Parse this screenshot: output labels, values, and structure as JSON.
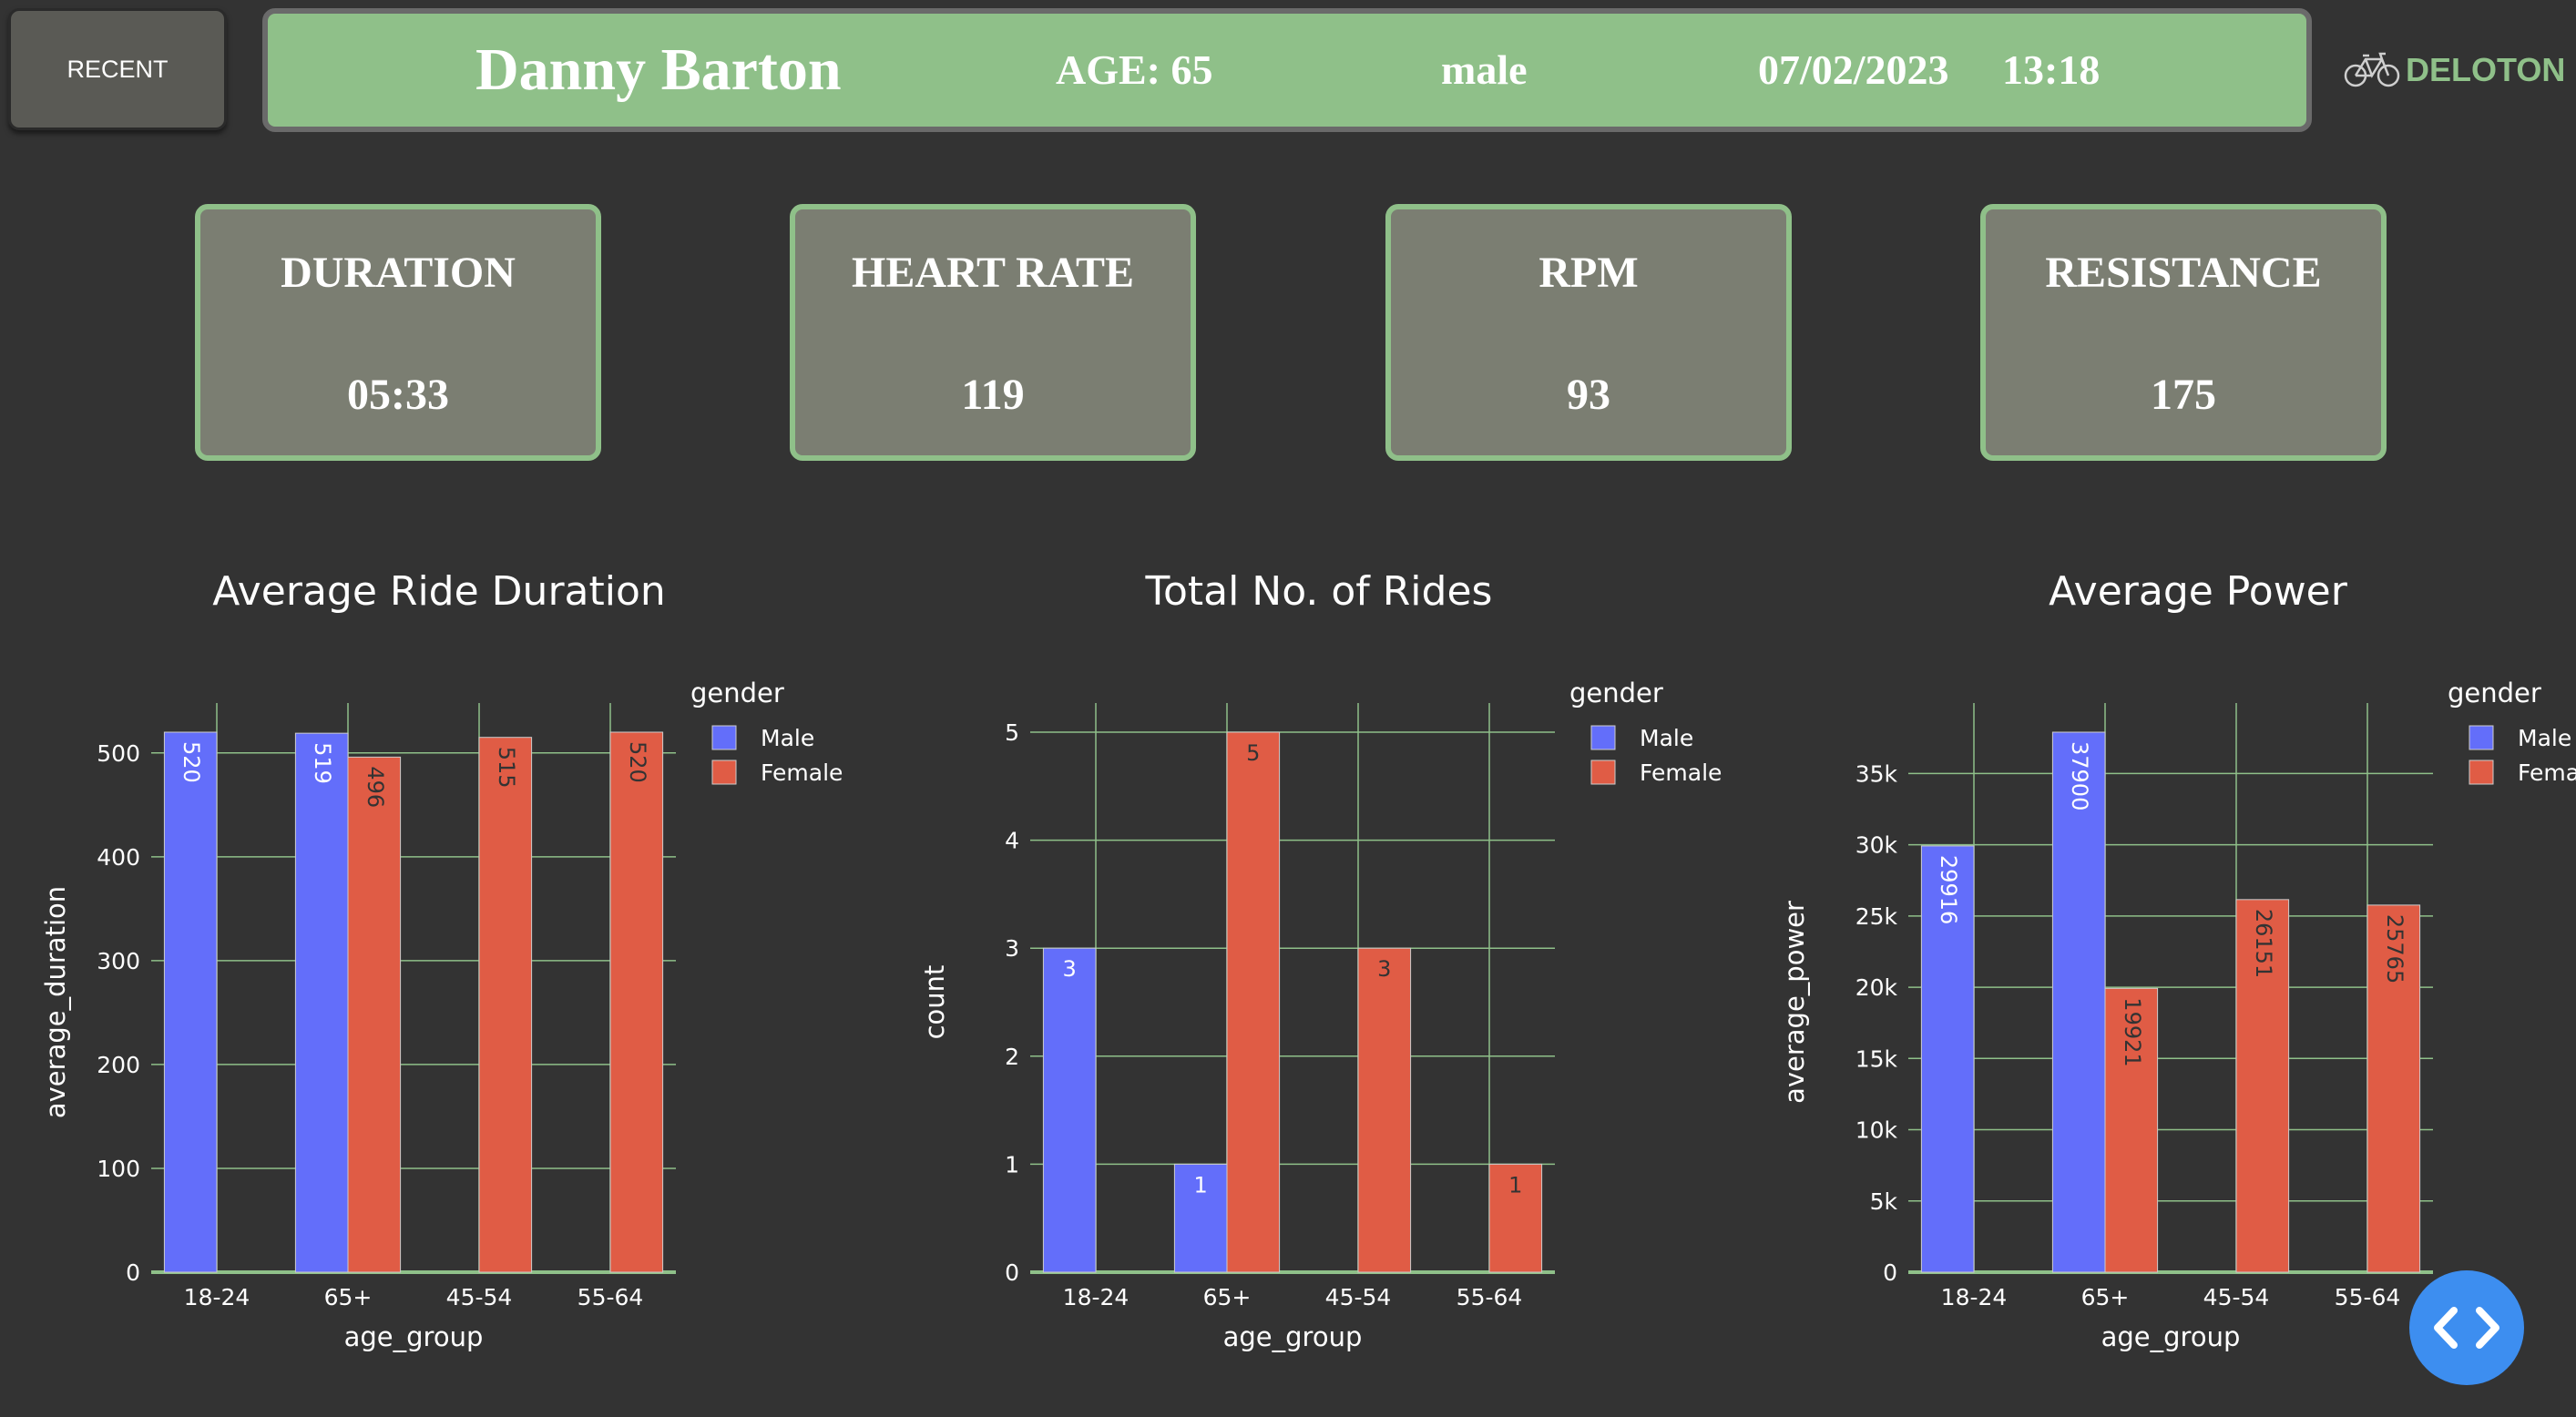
{
  "recent_button": "RECENT",
  "header": {
    "name": "Danny Barton",
    "age": "AGE: 65",
    "gender": "male",
    "date": "07/02/2023",
    "time": "13:18"
  },
  "logo": {
    "text": "DELOTON",
    "icon": "bicycle-icon"
  },
  "stats": [
    {
      "label": "DURATION",
      "value": "05:33"
    },
    {
      "label": "HEART RATE",
      "value": "119"
    },
    {
      "label": "RPM",
      "value": "93"
    },
    {
      "label": "RESISTANCE",
      "value": "175"
    }
  ],
  "colors": {
    "male": "#636efa",
    "female": "#e05c45",
    "grid": "#8fc089",
    "text": "#ffffff",
    "accent": "#8fc089"
  },
  "fab_icon": "code-brackets-icon",
  "chart_data": [
    {
      "type": "bar",
      "title": "Average Ride Duration",
      "xlabel": "age_group",
      "ylabel": "average_duration",
      "categories": [
        "18-24",
        "65+",
        "45-54",
        "55-64"
      ],
      "ylim": [
        0,
        520
      ],
      "yticks": [
        0,
        100,
        200,
        300,
        400,
        500
      ],
      "ytick_labels": [
        "0",
        "100",
        "200",
        "300",
        "400",
        "500"
      ],
      "legend_title": "gender",
      "series": [
        {
          "name": "Male",
          "values": [
            520,
            519,
            null,
            null
          ]
        },
        {
          "name": "Female",
          "values": [
            null,
            496,
            515,
            520
          ]
        }
      ],
      "labels_rotated": true
    },
    {
      "type": "bar",
      "title": "Total No. of Rides",
      "xlabel": "age_group",
      "ylabel": "count",
      "categories": [
        "18-24",
        "65+",
        "45-54",
        "55-64"
      ],
      "ylim": [
        0,
        5
      ],
      "yticks": [
        0,
        1,
        2,
        3,
        4,
        5
      ],
      "ytick_labels": [
        "0",
        "1",
        "2",
        "3",
        "4",
        "5"
      ],
      "legend_title": "gender",
      "series": [
        {
          "name": "Male",
          "values": [
            3,
            1,
            null,
            null
          ]
        },
        {
          "name": "Female",
          "values": [
            null,
            5,
            3,
            1
          ]
        }
      ],
      "labels_rotated": false
    },
    {
      "type": "bar",
      "title": "Average Power",
      "xlabel": "age_group",
      "ylabel": "average_power",
      "categories": [
        "18-24",
        "65+",
        "45-54",
        "55-64"
      ],
      "ylim": [
        0,
        37900
      ],
      "yticks": [
        0,
        5000,
        10000,
        15000,
        20000,
        25000,
        30000,
        35000
      ],
      "ytick_labels": [
        "0",
        "5k",
        "10k",
        "15k",
        "20k",
        "25k",
        "30k",
        "35k"
      ],
      "legend_title": "gender",
      "series": [
        {
          "name": "Male",
          "values": [
            29916,
            37900,
            null,
            null
          ]
        },
        {
          "name": "Female",
          "values": [
            null,
            19921,
            26151,
            25765
          ]
        }
      ],
      "labels_rotated": true
    }
  ]
}
